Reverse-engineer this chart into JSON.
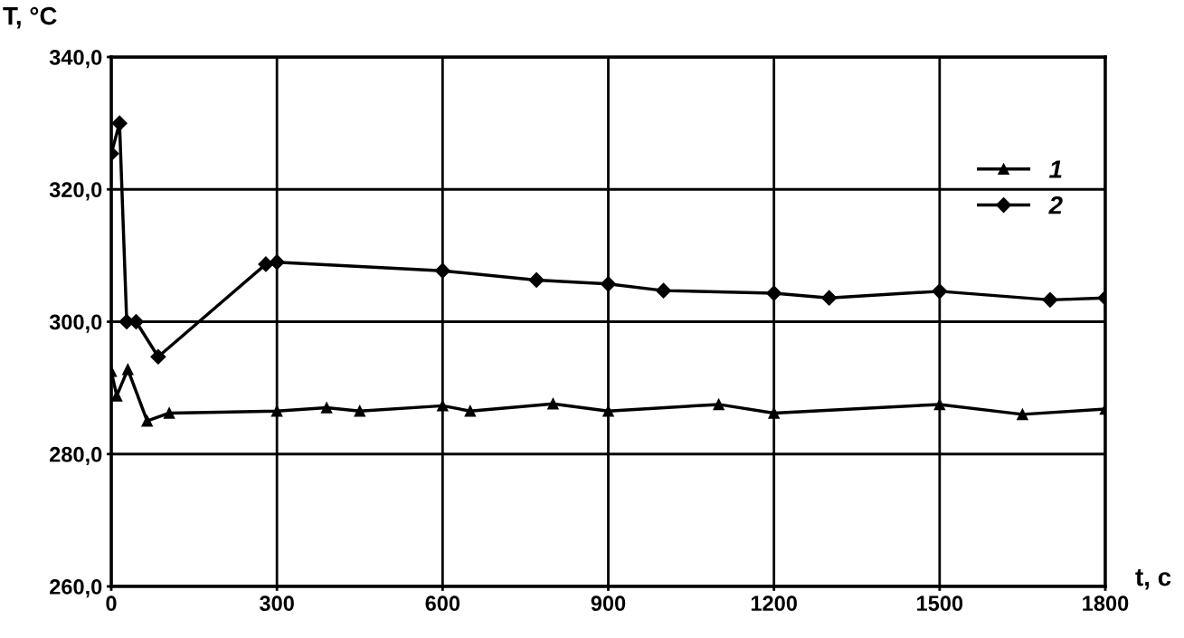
{
  "chart_data": {
    "type": "line",
    "xlabel": "t, c",
    "ylabel": "T, °C",
    "xlim": [
      0,
      1800
    ],
    "xticks": [
      0,
      300,
      600,
      900,
      1200,
      1500,
      1800
    ],
    "ylim": [
      260,
      340
    ],
    "yticks": [
      {
        "value": 260,
        "label": "260,0"
      },
      {
        "value": 280,
        "label": "280,0"
      },
      {
        "value": 300,
        "label": "300,0"
      },
      {
        "value": 320,
        "label": "320,0"
      },
      {
        "value": 340,
        "label": "340,0"
      }
    ],
    "grid": true,
    "legend": "right",
    "line_style": "solid",
    "series": [
      {
        "name": "1",
        "color": "#000000",
        "marker": "triangle",
        "x": [
          0,
          10,
          30,
          65,
          105,
          300,
          390,
          450,
          600,
          650,
          800,
          900,
          1100,
          1200,
          1500,
          1650,
          1800
        ],
        "values": [
          292.5,
          288.8,
          292.8,
          285,
          286.2,
          286.5,
          287,
          286.5,
          287.3,
          286.5,
          287.6,
          286.5,
          287.5,
          286.2,
          287.5,
          286,
          286.8
        ]
      },
      {
        "name": "2",
        "color": "#000000",
        "marker": "diamond",
        "x": [
          0,
          15,
          28,
          45,
          85,
          280,
          300,
          600,
          770,
          900,
          1000,
          1200,
          1300,
          1500,
          1700,
          1800
        ],
        "values": [
          325.4,
          330,
          300,
          300,
          294.7,
          308.7,
          309,
          307.7,
          306.3,
          305.7,
          304.7,
          304.3,
          303.6,
          304.6,
          303.3,
          303.6
        ]
      }
    ]
  }
}
